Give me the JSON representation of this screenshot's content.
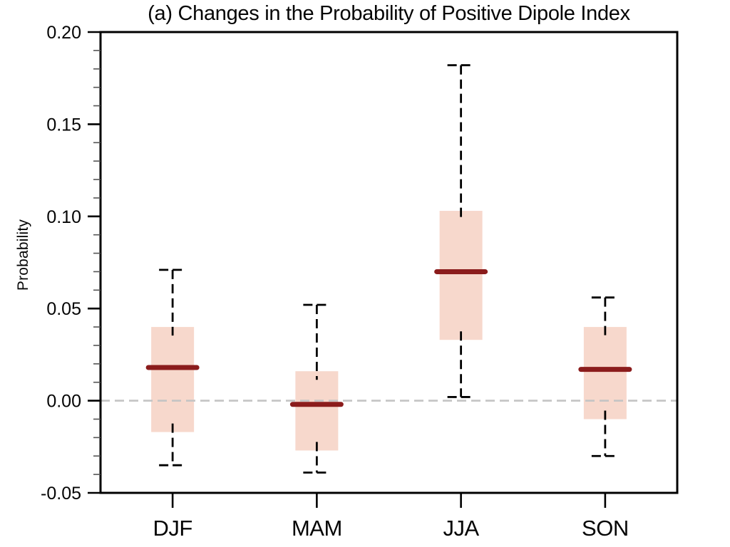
{
  "figure": {
    "title": "(a) Changes in the Probability of Positive Dipole Index",
    "ylabel": "Probability"
  },
  "chart_data": {
    "type": "box",
    "title": "(a) Changes in the Probability of Positive Dipole Index",
    "xlabel": "",
    "ylabel": "Probability",
    "categories": [
      "DJF",
      "MAM",
      "JJA",
      "SON"
    ],
    "boxes": [
      {
        "category": "DJF",
        "whisker_low": -0.035,
        "q1": -0.017,
        "median": 0.018,
        "q3": 0.04,
        "whisker_high": 0.071
      },
      {
        "category": "MAM",
        "whisker_low": -0.039,
        "q1": -0.027,
        "median": -0.002,
        "q3": 0.016,
        "whisker_high": 0.052
      },
      {
        "category": "JJA",
        "whisker_low": 0.002,
        "q1": 0.033,
        "median": 0.07,
        "q3": 0.103,
        "whisker_high": 0.182
      },
      {
        "category": "SON",
        "whisker_low": -0.03,
        "q1": -0.01,
        "median": 0.017,
        "q3": 0.04,
        "whisker_high": 0.056
      }
    ],
    "ylim": [
      -0.05,
      0.2
    ],
    "yticks_major": [
      -0.05,
      0.0,
      0.05,
      0.1,
      0.15,
      0.2
    ],
    "ytick_labels": [
      "-0.05",
      "0.00",
      "0.05",
      "0.10",
      "0.15",
      "0.20"
    ],
    "ytick_minor_step": 0.01,
    "reference_line_y": 0.0,
    "grid": false,
    "legend": null,
    "colors": {
      "box_fill": "#f7d8cc",
      "median_line": "#8b1c1c",
      "whisker_line": "#000000",
      "reference_line": "#c4c4c4",
      "axis_line": "#000000",
      "background": "#ffffff"
    }
  }
}
